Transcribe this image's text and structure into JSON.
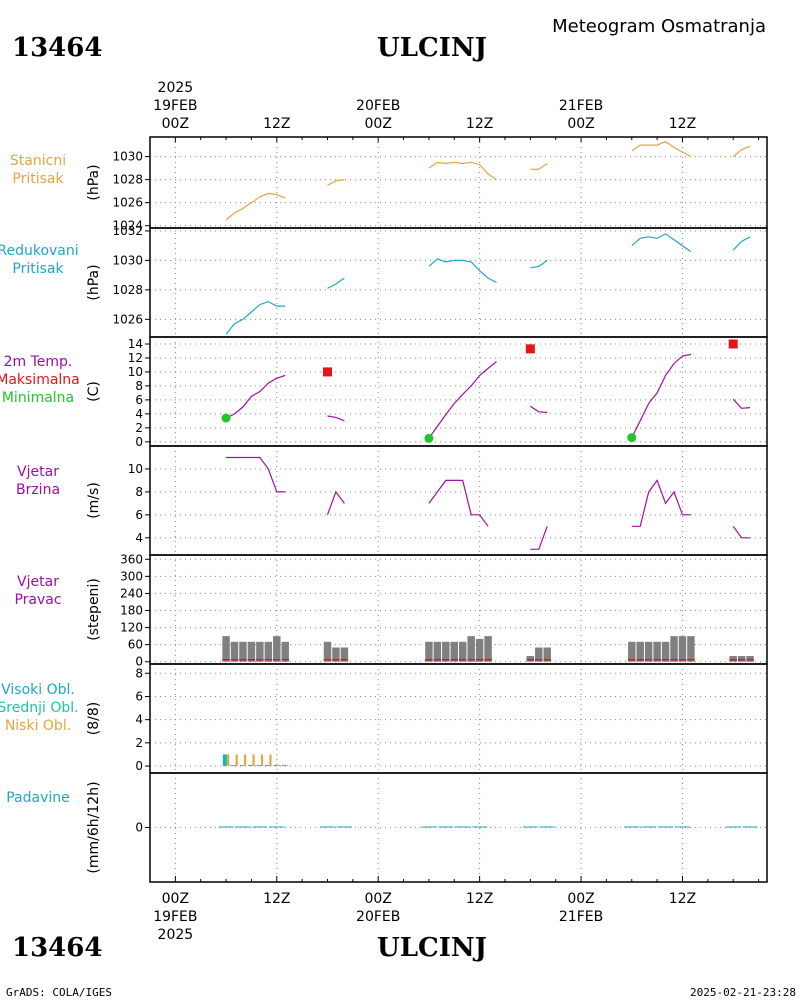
{
  "header": {
    "station_id": "13464",
    "station_name": "ULCINJ",
    "subtitle": "Meteogram Osmatranja"
  },
  "footer": {
    "left": "GrADS: COLA/IGES",
    "right": "2025-02-21-23:28"
  },
  "time_axis": {
    "top": [
      {
        "hour": 0,
        "lines": [
          "2025",
          "19FEB",
          "00Z"
        ]
      },
      {
        "hour": 12,
        "lines": [
          "12Z"
        ]
      },
      {
        "hour": 24,
        "lines": [
          "20FEB",
          "00Z"
        ]
      },
      {
        "hour": 36,
        "lines": [
          "12Z"
        ]
      },
      {
        "hour": 48,
        "lines": [
          "21FEB",
          "00Z"
        ]
      },
      {
        "hour": 60,
        "lines": [
          "12Z"
        ]
      }
    ],
    "bottom": [
      {
        "hour": 0,
        "lines": [
          "00Z",
          "19FEB",
          "2025"
        ]
      },
      {
        "hour": 12,
        "lines": [
          "12Z"
        ]
      },
      {
        "hour": 24,
        "lines": [
          "00Z",
          "20FEB"
        ]
      },
      {
        "hour": 36,
        "lines": [
          "12Z"
        ]
      },
      {
        "hour": 48,
        "lines": [
          "00Z",
          "21FEB"
        ]
      },
      {
        "hour": 60,
        "lines": [
          "12Z"
        ]
      }
    ],
    "xlim": [
      -3,
      70
    ]
  },
  "colors": {
    "pressure_station": "#e1a640",
    "pressure_reduced": "#1fa6c8",
    "temperature": "#a0109e",
    "tmax": "#e8141a",
    "tmin": "#21c62a",
    "wind_speed": "#a0109e",
    "wind_dir_bar": "#808080",
    "wind_dir_base": "#e8141a",
    "cloud_high": "#1fa6c8",
    "cloud_mid": "#20c69e",
    "cloud_low": "#e1a640",
    "precip": "#1fa6c8",
    "label_purple": "#9a10a0"
  },
  "chart_data": [
    {
      "type": "line",
      "panel_label": [
        "Stanicni",
        "Pritisak"
      ],
      "ylabel": "(hPa)",
      "yticks": [
        1024,
        1026,
        1028,
        1030
      ],
      "ylim": [
        1023.8,
        1031.7
      ],
      "grid": true,
      "series": [
        {
          "segments": [
            [
              [
                6,
                1024.5
              ],
              [
                7,
                1025.1
              ],
              [
                8,
                1025.5
              ],
              [
                9,
                1026.0
              ],
              [
                10,
                1026.5
              ],
              [
                11,
                1026.8
              ],
              [
                12,
                1026.7
              ],
              [
                13,
                1026.4
              ]
            ],
            [
              [
                18,
                1027.5
              ],
              [
                19,
                1027.9
              ],
              [
                20,
                1028.0
              ]
            ],
            [
              [
                30,
                1029.0
              ],
              [
                31,
                1029.5
              ],
              [
                32,
                1029.4
              ],
              [
                33,
                1029.5
              ],
              [
                34,
                1029.4
              ],
              [
                35,
                1029.5
              ],
              [
                36,
                1029.3
              ],
              [
                37,
                1028.5
              ],
              [
                38,
                1028.0
              ]
            ],
            [
              [
                42,
                1028.9
              ],
              [
                43,
                1028.9
              ],
              [
                44,
                1029.4
              ]
            ],
            [
              [
                54,
                1030.5
              ],
              [
                55,
                1031.0
              ],
              [
                56,
                1031.0
              ],
              [
                57,
                1031.0
              ],
              [
                58,
                1031.3
              ],
              [
                59,
                1030.8
              ],
              [
                60,
                1030.4
              ],
              [
                61,
                1030.0
              ]
            ],
            [
              [
                66,
                1030.0
              ],
              [
                67,
                1030.6
              ],
              [
                68,
                1030.9
              ]
            ]
          ]
        }
      ]
    },
    {
      "type": "line",
      "panel_label": [
        "Redukovani",
        "Pritisak"
      ],
      "ylabel": "(hPa)",
      "yticks": [
        1026,
        1028,
        1030,
        1032
      ],
      "ylim": [
        1024.8,
        1032.2
      ],
      "grid": true,
      "series": [
        {
          "segments": [
            [
              [
                6,
                1025.0
              ],
              [
                7,
                1025.7
              ],
              [
                8,
                1026.0
              ],
              [
                9,
                1026.5
              ],
              [
                10,
                1027.0
              ],
              [
                11,
                1027.2
              ],
              [
                12,
                1026.9
              ],
              [
                13,
                1026.9
              ]
            ],
            [
              [
                18,
                1028.1
              ],
              [
                19,
                1028.4
              ],
              [
                20,
                1028.8
              ]
            ],
            [
              [
                30,
                1029.6
              ],
              [
                31,
                1030.1
              ],
              [
                32,
                1029.9
              ],
              [
                33,
                1030.0
              ],
              [
                34,
                1030.0
              ],
              [
                35,
                1029.9
              ],
              [
                36,
                1029.3
              ],
              [
                37,
                1028.8
              ],
              [
                38,
                1028.5
              ]
            ],
            [
              [
                42,
                1029.5
              ],
              [
                43,
                1029.6
              ],
              [
                44,
                1030.0
              ]
            ],
            [
              [
                54,
                1031.0
              ],
              [
                55,
                1031.5
              ],
              [
                56,
                1031.6
              ],
              [
                57,
                1031.5
              ],
              [
                58,
                1031.8
              ],
              [
                59,
                1031.4
              ],
              [
                60,
                1031.0
              ],
              [
                61,
                1030.6
              ]
            ],
            [
              [
                66,
                1030.7
              ],
              [
                67,
                1031.3
              ],
              [
                68,
                1031.6
              ]
            ]
          ]
        }
      ]
    },
    {
      "type": "line",
      "panel_label": [
        "2m Temp.",
        "Maksimalna",
        "Minimalna"
      ],
      "ylabel": "(C)",
      "yticks": [
        0,
        2,
        4,
        6,
        8,
        10,
        12,
        14
      ],
      "ylim": [
        -0.6,
        15
      ],
      "grid": true,
      "series": [
        {
          "segments": [
            [
              [
                6,
                3.4
              ],
              [
                7,
                4.0
              ],
              [
                8,
                5.0
              ],
              [
                9,
                6.5
              ],
              [
                10,
                7.2
              ],
              [
                11,
                8.4
              ],
              [
                12,
                9.1
              ],
              [
                13,
                9.5
              ]
            ],
            [
              [
                18,
                3.7
              ],
              [
                19,
                3.5
              ],
              [
                20,
                3.0
              ]
            ],
            [
              [
                30,
                0.5
              ],
              [
                31,
                2.2
              ],
              [
                32,
                3.9
              ],
              [
                33,
                5.5
              ],
              [
                34,
                6.8
              ],
              [
                35,
                8.0
              ],
              [
                36,
                9.5
              ],
              [
                37,
                10.5
              ],
              [
                38,
                11.5
              ]
            ],
            [
              [
                42,
                5.1
              ],
              [
                43,
                4.3
              ],
              [
                44,
                4.2
              ]
            ],
            [
              [
                54,
                0.6
              ],
              [
                55,
                3.0
              ],
              [
                56,
                5.5
              ],
              [
                57,
                7.0
              ],
              [
                58,
                9.5
              ],
              [
                59,
                11.2
              ],
              [
                60,
                12.3
              ],
              [
                61,
                12.5
              ]
            ],
            [
              [
                66,
                6.1
              ],
              [
                67,
                4.8
              ],
              [
                68,
                4.9
              ]
            ]
          ]
        }
      ],
      "tmax": [
        [
          18,
          10.0
        ],
        [
          42,
          13.3
        ],
        [
          66,
          14.0
        ]
      ],
      "tmin": [
        [
          6,
          3.4
        ],
        [
          30,
          0.5
        ],
        [
          54,
          0.6
        ]
      ]
    },
    {
      "type": "line",
      "panel_label": [
        "Vjetar",
        "Brzina"
      ],
      "ylabel": "(m/s)",
      "yticks": [
        4,
        6,
        8,
        10
      ],
      "ylim": [
        2.5,
        12
      ],
      "grid": true,
      "series": [
        {
          "segments": [
            [
              [
                6,
                11
              ],
              [
                7,
                11
              ],
              [
                8,
                11
              ],
              [
                9,
                11
              ],
              [
                10,
                11
              ],
              [
                11,
                10
              ],
              [
                12,
                8
              ],
              [
                13,
                8
              ]
            ],
            [
              [
                18,
                6
              ],
              [
                19,
                8
              ],
              [
                20,
                7
              ]
            ],
            [
              [
                30,
                7
              ],
              [
                31,
                8
              ],
              [
                32,
                9
              ],
              [
                33,
                9
              ],
              [
                34,
                9
              ],
              [
                35,
                6
              ],
              [
                36,
                6
              ],
              [
                37,
                5
              ]
            ],
            [
              [
                42,
                3
              ],
              [
                43,
                3
              ],
              [
                44,
                5
              ]
            ],
            [
              [
                54,
                5
              ],
              [
                55,
                5
              ],
              [
                56,
                8
              ],
              [
                57,
                9
              ],
              [
                58,
                7
              ],
              [
                59,
                8
              ],
              [
                60,
                6
              ],
              [
                61,
                6
              ]
            ],
            [
              [
                66,
                5
              ],
              [
                67,
                4
              ],
              [
                68,
                4
              ]
            ]
          ]
        }
      ]
    },
    {
      "type": "bar",
      "panel_label": [
        "Vjetar",
        "Pravac"
      ],
      "ylabel": "(stepeni)",
      "yticks": [
        0,
        60,
        120,
        180,
        240,
        300,
        360
      ],
      "ylim": [
        -8,
        375
      ],
      "grid": true,
      "bars": [
        [
          6,
          90
        ],
        [
          7,
          70
        ],
        [
          8,
          70
        ],
        [
          9,
          70
        ],
        [
          10,
          70
        ],
        [
          11,
          70
        ],
        [
          12,
          90
        ],
        [
          13,
          70
        ],
        [
          18,
          70
        ],
        [
          19,
          50
        ],
        [
          20,
          50
        ],
        [
          30,
          70
        ],
        [
          31,
          70
        ],
        [
          32,
          70
        ],
        [
          33,
          70
        ],
        [
          34,
          70
        ],
        [
          35,
          90
        ],
        [
          36,
          80
        ],
        [
          37,
          90
        ],
        [
          42,
          20
        ],
        [
          43,
          50
        ],
        [
          44,
          50
        ],
        [
          54,
          70
        ],
        [
          55,
          70
        ],
        [
          56,
          70
        ],
        [
          57,
          70
        ],
        [
          58,
          70
        ],
        [
          59,
          90
        ],
        [
          60,
          90
        ],
        [
          61,
          90
        ],
        [
          66,
          20
        ],
        [
          67,
          20
        ],
        [
          68,
          20
        ]
      ]
    },
    {
      "type": "bar",
      "panel_label": [
        "Visoki Obl.",
        "Srednji Obl.",
        "Niski Obl."
      ],
      "ylabel": "(8/8)",
      "yticks": [
        0,
        2,
        4,
        6,
        8
      ],
      "ylim": [
        -0.6,
        8.8
      ],
      "grid": true,
      "high": [
        [
          6,
          1
        ],
        [
          7,
          0
        ],
        [
          8,
          0
        ],
        [
          9,
          0
        ],
        [
          10,
          0
        ],
        [
          11,
          0
        ],
        [
          12,
          0
        ],
        [
          13,
          0
        ]
      ],
      "mid": [
        [
          6,
          1
        ],
        [
          7,
          0
        ],
        [
          8,
          0
        ],
        [
          9,
          0
        ],
        [
          10,
          0
        ],
        [
          11,
          0
        ],
        [
          12,
          0
        ],
        [
          13,
          0
        ]
      ],
      "low": [
        [
          6,
          1
        ],
        [
          7,
          1
        ],
        [
          8,
          1
        ],
        [
          9,
          1
        ],
        [
          10,
          1
        ],
        [
          11,
          1
        ],
        [
          12,
          0
        ],
        [
          13,
          0
        ]
      ]
    },
    {
      "type": "bar",
      "panel_label": [
        "Padavine"
      ],
      "ylabel": "(mm/6h/12h)",
      "yticks": [
        0
      ],
      "ylim": [
        -6,
        6
      ],
      "grid": true,
      "values": [
        [
          6,
          0
        ],
        [
          8,
          0
        ],
        [
          10,
          0
        ],
        [
          12,
          0
        ],
        [
          18,
          0
        ],
        [
          20,
          0
        ],
        [
          30,
          0
        ],
        [
          32,
          0
        ],
        [
          34,
          0
        ],
        [
          36,
          0
        ],
        [
          42,
          0
        ],
        [
          44,
          0
        ],
        [
          54,
          0
        ],
        [
          56,
          0
        ],
        [
          58,
          0
        ],
        [
          60,
          0
        ],
        [
          66,
          0
        ],
        [
          68,
          0
        ]
      ]
    }
  ]
}
